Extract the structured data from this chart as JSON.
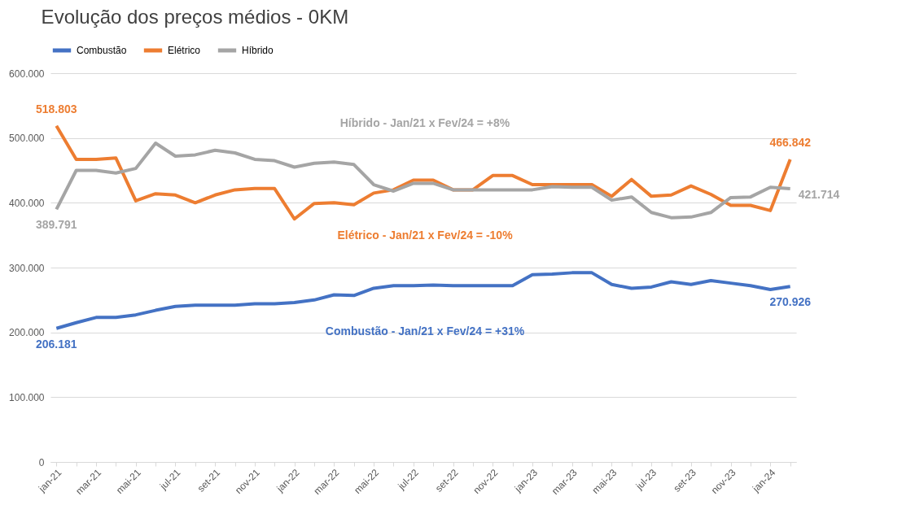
{
  "chart_data": {
    "type": "line",
    "title": "Evolução dos preços médios - 0KM",
    "categories": [
      "jan-21",
      null,
      "mar-21",
      null,
      "mai-21",
      null,
      "jul-21",
      null,
      "set-21",
      null,
      "nov-21",
      null,
      "jan-22",
      null,
      "mar-22",
      null,
      "mai-22",
      null,
      "jul-22",
      null,
      "set-22",
      null,
      "nov-22",
      null,
      "jan-23",
      null,
      "mar-23",
      null,
      "mai-23",
      null,
      "jul-23",
      null,
      "set-23",
      null,
      "nov-23",
      null,
      "jan-24",
      null
    ],
    "series": [
      {
        "name": "Combustão",
        "color": "#4472c4",
        "values": [
          206181,
          215000,
          223000,
          223000,
          227000,
          234000,
          240000,
          242000,
          242000,
          242000,
          244000,
          244000,
          246000,
          250000,
          258000,
          257000,
          268000,
          272000,
          272000,
          273000,
          272000,
          272000,
          272000,
          272000,
          289000,
          290000,
          292000,
          292000,
          274000,
          268000,
          270000,
          278000,
          274000,
          280000,
          276000,
          272000,
          266000,
          270926
        ],
        "value_labels": [
          "206.181",
          null,
          null,
          null,
          null,
          null,
          null,
          null,
          null,
          null,
          null,
          null,
          null,
          null,
          null,
          null,
          null,
          null,
          null,
          null,
          null,
          null,
          null,
          null,
          null,
          null,
          null,
          null,
          null,
          null,
          null,
          null,
          null,
          null,
          null,
          null,
          null,
          "270.926"
        ]
      },
      {
        "name": "Elétrico",
        "color": "#ed7d31",
        "values": [
          518803,
          467000,
          467000,
          469000,
          403000,
          414000,
          412000,
          400000,
          412000,
          420000,
          422000,
          422000,
          375000,
          399000,
          400000,
          397000,
          415000,
          420000,
          435000,
          435000,
          420000,
          420000,
          442000,
          442000,
          428000,
          428000,
          428000,
          428000,
          410000,
          436000,
          410000,
          412000,
          426000,
          413000,
          396000,
          396000,
          388000,
          466842
        ],
        "value_labels": [
          "518.803",
          null,
          null,
          null,
          null,
          null,
          null,
          null,
          null,
          null,
          null,
          null,
          null,
          null,
          null,
          null,
          null,
          null,
          null,
          null,
          null,
          null,
          null,
          null,
          null,
          null,
          null,
          null,
          null,
          null,
          null,
          null,
          null,
          null,
          null,
          null,
          null,
          "466.842"
        ]
      },
      {
        "name": "Híbrido",
        "color": "#a5a5a5",
        "values": [
          389791,
          450000,
          450000,
          446000,
          453000,
          492000,
          472000,
          474000,
          481000,
          477000,
          467000,
          465000,
          455000,
          461000,
          463000,
          459000,
          428000,
          418000,
          430000,
          430000,
          420000,
          420000,
          420000,
          420000,
          420000,
          425000,
          424000,
          424000,
          404000,
          409000,
          385000,
          377000,
          378000,
          385000,
          408000,
          409000,
          424000,
          421714
        ],
        "value_labels": [
          "389.791",
          null,
          null,
          null,
          null,
          null,
          null,
          null,
          null,
          null,
          null,
          null,
          null,
          null,
          null,
          null,
          null,
          null,
          null,
          null,
          null,
          null,
          null,
          null,
          null,
          null,
          null,
          null,
          null,
          null,
          null,
          null,
          null,
          null,
          null,
          null,
          null,
          "421.714"
        ]
      }
    ],
    "ylim": [
      0,
      600000
    ],
    "yticks": [
      0,
      {
        "value": 100000,
        "label": "100.000"
      },
      {
        "value": 200000,
        "label": "200.000"
      },
      {
        "value": 300000,
        "label": "300.000"
      },
      {
        "value": 400000,
        "label": "400.000"
      },
      {
        "value": 500000,
        "label": "500.000"
      },
      {
        "value": 600000,
        "label": "600.000"
      }
    ],
    "grid": "y",
    "legend": "top",
    "annotations": [
      "Híbrido - Jan/21 x Fev/24 = +8%",
      "Elétrico - Jan/21 x Fev/24 = -10%",
      "Combustão - Jan/21 x Fev/24 = +31%"
    ]
  }
}
